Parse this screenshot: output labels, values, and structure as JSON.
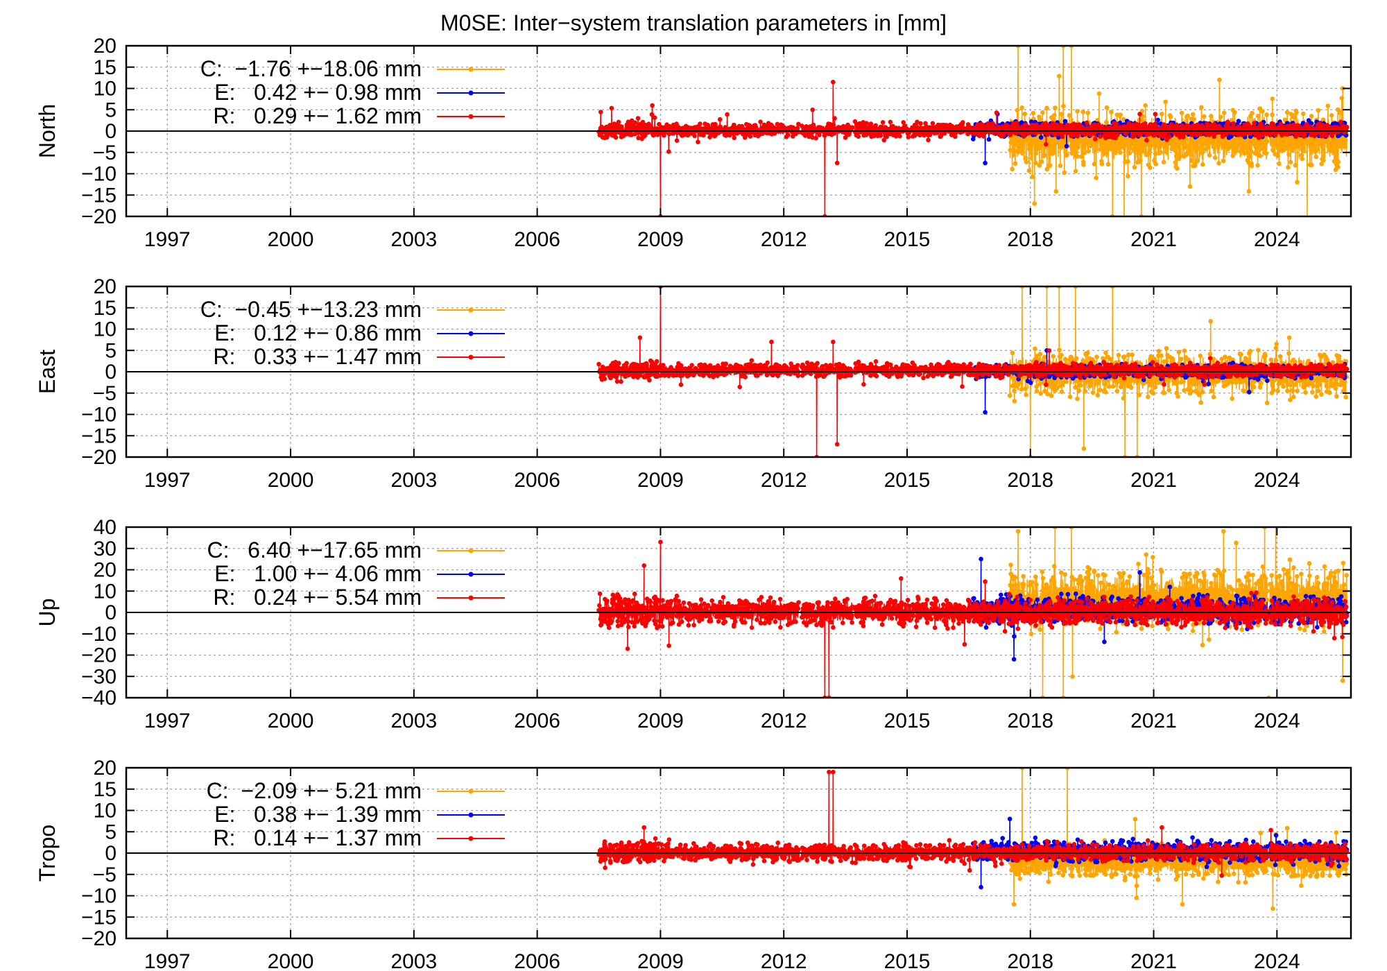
{
  "figure": {
    "title": "M0SE: Inter−system translation parameters in [mm]"
  },
  "colors": {
    "C": "#ffa500",
    "E": "#0000ff",
    "R": "#ff0000",
    "grid": "#a0a0a0",
    "axis": "#000000"
  },
  "chart_data": [
    {
      "type": "line",
      "title": "",
      "ylabel": "North",
      "xlim": [
        1996,
        2025.8
      ],
      "ylim": [
        -20,
        20
      ],
      "yticks": [
        -20,
        -15,
        -10,
        -5,
        0,
        5,
        10,
        15,
        20
      ],
      "xticks": [
        1997,
        2000,
        2003,
        2006,
        2009,
        2012,
        2015,
        2018,
        2021,
        2024
      ],
      "grid": true,
      "legend": "top-left",
      "legend_entries": [
        {
          "key": "C",
          "label": "C:  −1.76 +−18.06 mm"
        },
        {
          "key": "E",
          "label": "E:   0.42 +− 0.98 mm"
        },
        {
          "key": "R",
          "label": "R:   0.29 +− 1.62 mm"
        }
      ],
      "series": [
        {
          "name": "C",
          "key": "C",
          "start": 2017.5,
          "end": 2025.7,
          "mean": -1.76,
          "spread": 4.6,
          "spikes": [
            [
              2017.7,
              20
            ],
            [
              2018.8,
              20
            ],
            [
              2019.0,
              20
            ],
            [
              2020.0,
              -20
            ],
            [
              2020.7,
              -20
            ],
            [
              2018.1,
              -17
            ],
            [
              2019.6,
              -11
            ],
            [
              2022.6,
              12
            ],
            [
              2025.6,
              10
            ]
          ]
        },
        {
          "name": "E",
          "key": "E",
          "start": 2016.6,
          "end": 2025.7,
          "mean": 0.42,
          "spread": 1.1,
          "spikes": [
            [
              2016.9,
              -7.5
            ],
            [
              2017.2,
              4
            ]
          ]
        },
        {
          "name": "R",
          "key": "R",
          "start": 2007.5,
          "end": 2025.7,
          "mean": 0.29,
          "spread": 1.0,
          "spikes": [
            [
              2009.0,
              -20
            ],
            [
              2013.0,
              -20
            ],
            [
              2013.2,
              11.5
            ],
            [
              2013.3,
              -7.5
            ],
            [
              2012.7,
              5
            ],
            [
              2008.8,
              6
            ],
            [
              2009.2,
              -4.8
            ]
          ]
        }
      ]
    },
    {
      "type": "line",
      "title": "",
      "ylabel": "East",
      "xlim": [
        1996,
        2025.8
      ],
      "ylim": [
        -20,
        20
      ],
      "yticks": [
        -20,
        -15,
        -10,
        -5,
        0,
        5,
        10,
        15,
        20
      ],
      "xticks": [
        1997,
        2000,
        2003,
        2006,
        2009,
        2012,
        2015,
        2018,
        2021,
        2024
      ],
      "grid": true,
      "legend": "top-left",
      "legend_entries": [
        {
          "key": "C",
          "label": "C:  −0.45 +−13.23 mm"
        },
        {
          "key": "E",
          "label": "E:   0.12 +− 0.86 mm"
        },
        {
          "key": "R",
          "label": "R:   0.33 +− 1.47 mm"
        }
      ],
      "series": [
        {
          "name": "C",
          "key": "C",
          "start": 2017.5,
          "end": 2025.7,
          "mean": -0.45,
          "spread": 3.5,
          "spikes": [
            [
              2017.8,
              20
            ],
            [
              2018.4,
              20
            ],
            [
              2018.7,
              20
            ],
            [
              2019.1,
              20
            ],
            [
              2020.0,
              20
            ],
            [
              2018.0,
              -20
            ],
            [
              2019.3,
              -18
            ],
            [
              2020.3,
              -20
            ],
            [
              2020.6,
              -20
            ],
            [
              2024.3,
              8
            ]
          ]
        },
        {
          "name": "E",
          "key": "E",
          "start": 2016.6,
          "end": 2025.7,
          "mean": 0.12,
          "spread": 1.0,
          "spikes": [
            [
              2016.9,
              -9.5
            ],
            [
              2018.4,
              5
            ]
          ]
        },
        {
          "name": "R",
          "key": "R",
          "start": 2007.5,
          "end": 2025.7,
          "mean": 0.33,
          "spread": 1.0,
          "spikes": [
            [
              2009.0,
              20
            ],
            [
              2012.8,
              -20
            ],
            [
              2013.3,
              -17
            ],
            [
              2013.2,
              7
            ],
            [
              2008.5,
              8
            ],
            [
              2011.7,
              7
            ]
          ]
        }
      ]
    },
    {
      "type": "line",
      "title": "",
      "ylabel": "Up",
      "xlim": [
        1996,
        2025.8
      ],
      "ylim": [
        -40,
        40
      ],
      "yticks": [
        -40,
        -30,
        -20,
        -10,
        0,
        10,
        20,
        30,
        40
      ],
      "xticks": [
        1997,
        2000,
        2003,
        2006,
        2009,
        2012,
        2015,
        2018,
        2021,
        2024
      ],
      "grid": true,
      "legend": "top-left",
      "legend_entries": [
        {
          "key": "C",
          "label": "C:   6.40 +−17.65 mm"
        },
        {
          "key": "E",
          "label": "E:   1.00 +− 4.06 mm"
        },
        {
          "key": "R",
          "label": "R:   0.24 +− 5.54 mm"
        }
      ],
      "series": [
        {
          "name": "C",
          "key": "C",
          "start": 2017.5,
          "end": 2025.7,
          "mean": 6.4,
          "spread": 9.0,
          "spikes": [
            [
              2017.7,
              38
            ],
            [
              2018.6,
              40
            ],
            [
              2019.0,
              40
            ],
            [
              2022.7,
              38
            ],
            [
              2023.7,
              40
            ],
            [
              2018.3,
              -40
            ],
            [
              2018.8,
              -40
            ],
            [
              2023.8,
              -40
            ],
            [
              2025.6,
              -32
            ]
          ]
        },
        {
          "name": "E",
          "key": "E",
          "start": 2016.6,
          "end": 2025.7,
          "mean": 1.0,
          "spread": 4.0,
          "spikes": [
            [
              2016.8,
              25
            ],
            [
              2017.6,
              -22
            ]
          ]
        },
        {
          "name": "R",
          "key": "R",
          "start": 2007.5,
          "end": 2025.7,
          "mean": 0.24,
          "spread": 4.0,
          "spikes": [
            [
              2009.0,
              33
            ],
            [
              2013.0,
              -40
            ],
            [
              2013.1,
              -40
            ],
            [
              2008.6,
              22
            ],
            [
              2008.2,
              -17
            ],
            [
              2016.4,
              -15
            ]
          ]
        }
      ]
    },
    {
      "type": "line",
      "title": "",
      "ylabel": "Tropo",
      "xlim": [
        1996,
        2025.8
      ],
      "ylim": [
        -20,
        20
      ],
      "yticks": [
        -20,
        -15,
        -10,
        -5,
        0,
        5,
        10,
        15,
        20
      ],
      "xticks": [
        1997,
        2000,
        2003,
        2006,
        2009,
        2012,
        2015,
        2018,
        2021,
        2024
      ],
      "grid": true,
      "legend": "top-left",
      "legend_entries": [
        {
          "key": "C",
          "label": "C:  −2.09 +− 5.21 mm"
        },
        {
          "key": "E",
          "label": "E:   0.38 +− 1.39 mm"
        },
        {
          "key": "R",
          "label": "R:   0.14 +− 1.37 mm"
        }
      ],
      "series": [
        {
          "name": "C",
          "key": "C",
          "start": 2017.5,
          "end": 2025.7,
          "mean": -2.09,
          "spread": 2.4,
          "spikes": [
            [
              2017.8,
              20
            ],
            [
              2018.9,
              20
            ],
            [
              2017.6,
              -12
            ],
            [
              2021.7,
              -12
            ],
            [
              2023.9,
              -13
            ]
          ]
        },
        {
          "name": "E",
          "key": "E",
          "start": 2016.6,
          "end": 2025.7,
          "mean": 0.38,
          "spread": 1.5,
          "spikes": [
            [
              2016.8,
              -8
            ],
            [
              2017.5,
              8
            ]
          ]
        },
        {
          "name": "R",
          "key": "R",
          "start": 2007.5,
          "end": 2025.7,
          "mean": 0.14,
          "spread": 1.3,
          "spikes": [
            [
              2013.1,
              19
            ],
            [
              2013.2,
              19
            ],
            [
              2008.6,
              6
            ],
            [
              2021.2,
              6
            ]
          ]
        }
      ]
    }
  ]
}
